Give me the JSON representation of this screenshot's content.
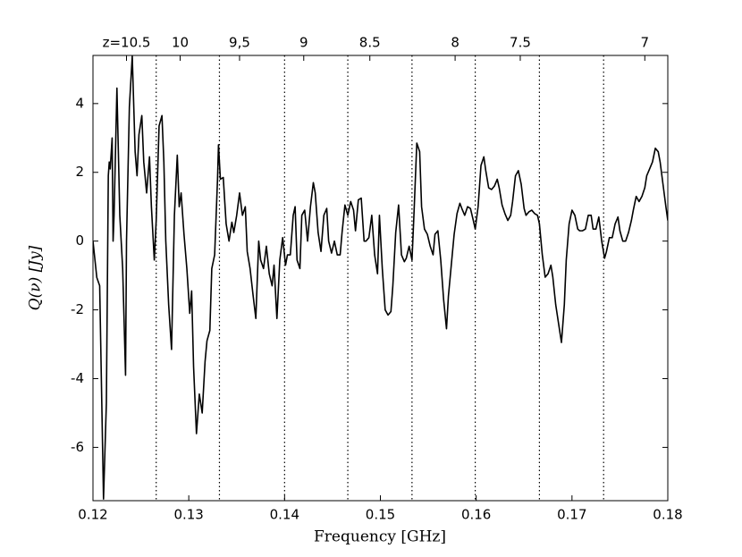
{
  "chart_data": {
    "type": "line",
    "xlabel": "Frequency [GHz]",
    "ylabel": "Q(ν) [Jy]",
    "xlim": [
      0.12,
      0.18
    ],
    "ylim": [
      -7.55,
      5.4
    ],
    "xticks": [
      0.12,
      0.13,
      0.14,
      0.15,
      0.16,
      0.17,
      0.18
    ],
    "yticks": [
      -6,
      -4,
      -2,
      0,
      2,
      4
    ],
    "x2ticks": [
      {
        "value": 0.1235,
        "label": "z=10.5"
      },
      {
        "value": 0.1291,
        "label": "10"
      },
      {
        "value": 0.1353,
        "label": "9,5"
      },
      {
        "value": 0.142,
        "label": "9"
      },
      {
        "value": 0.1489,
        "label": "8.5"
      },
      {
        "value": 0.1578,
        "label": "8"
      },
      {
        "value": 0.1646,
        "label": "7.5"
      },
      {
        "value": 0.1776,
        "label": "7"
      }
    ],
    "vlines": [
      0.1266,
      0.1332,
      0.14,
      0.1466,
      0.1533,
      0.1599,
      0.1666,
      0.1733
    ],
    "color": "#000000",
    "x": [
      0.12,
      0.1204,
      0.1207,
      0.1211,
      0.1214,
      0.1216,
      0.1217,
      0.1218,
      0.122,
      0.1221,
      0.1222,
      0.1225,
      0.1228,
      0.1231,
      0.1234,
      0.1235,
      0.1238,
      0.1241,
      0.1244,
      0.1246,
      0.1248,
      0.1251,
      0.1253,
      0.1256,
      0.1259,
      0.1261,
      0.1264,
      0.1266,
      0.1269,
      0.1272,
      0.1274,
      0.1276,
      0.1279,
      0.1282,
      0.1285,
      0.1288,
      0.129,
      0.1292,
      0.1295,
      0.1298,
      0.1301,
      0.1303,
      0.1305,
      0.1308,
      0.1311,
      0.1314,
      0.1317,
      0.1319,
      0.1322,
      0.1324,
      0.1327,
      0.133,
      0.1331,
      0.1333,
      0.1336,
      0.1339,
      0.1342,
      0.1345,
      0.1347,
      0.135,
      0.1353,
      0.1356,
      0.1359,
      0.1361,
      0.1364,
      0.1367,
      0.137,
      0.1373,
      0.1375,
      0.1378,
      0.1381,
      0.1384,
      0.1387,
      0.1389,
      0.1392,
      0.1395,
      0.1398,
      0.1401,
      0.1403,
      0.1406,
      0.1409,
      0.1411,
      0.1413,
      0.1416,
      0.1418,
      0.1421,
      0.1424,
      0.1427,
      0.143,
      0.1432,
      0.1435,
      0.1438,
      0.1441,
      0.1444,
      0.1446,
      0.1449,
      0.1452,
      0.1455,
      0.1458,
      0.146,
      0.1463,
      0.1466,
      0.1469,
      0.1472,
      0.1474,
      0.1477,
      0.148,
      0.1483,
      0.1485,
      0.1488,
      0.1491,
      0.1494,
      0.1497,
      0.1499,
      0.1502,
      0.1505,
      0.1508,
      0.1511,
      0.1513,
      0.1516,
      0.1519,
      0.1522,
      0.1525,
      0.1527,
      0.153,
      0.1533,
      0.1535,
      0.1538,
      0.1541,
      0.1543,
      0.1546,
      0.1549,
      0.1552,
      0.1555,
      0.1557,
      0.156,
      0.1563,
      0.1566,
      0.1569,
      0.1571,
      0.1574,
      0.1577,
      0.158,
      0.1583,
      0.1585,
      0.1588,
      0.1591,
      0.1594,
      0.1597,
      0.1599,
      0.1602,
      0.1605,
      0.1608,
      0.161,
      0.1613,
      0.1616,
      0.1619,
      0.1622,
      0.1624,
      0.1627,
      0.163,
      0.1633,
      0.1636,
      0.1638,
      0.1641,
      0.1644,
      0.1647,
      0.165,
      0.1652,
      0.1655,
      0.1658,
      0.1661,
      0.1664,
      0.1666,
      0.1669,
      0.1672,
      0.1675,
      0.1678,
      0.168,
      0.1683,
      0.1686,
      0.1689,
      0.1692,
      0.1694,
      0.1697,
      0.17,
      0.1703,
      0.1706,
      0.1708,
      0.1711,
      0.1714,
      0.1717,
      0.172,
      0.1722,
      0.1725,
      0.1728,
      0.1731,
      0.1734,
      0.1736,
      0.1739,
      0.1742,
      0.1745,
      0.1748,
      0.175,
      0.1753,
      0.1756,
      0.1759,
      0.1762,
      0.1764,
      0.1767,
      0.177,
      0.1773,
      0.1776,
      0.1778,
      0.1781,
      0.1784,
      0.1787,
      0.179,
      0.1792,
      0.1795,
      0.1798,
      0.18
    ],
    "values": [
      0,
      -1.06,
      -1.3,
      -7.5,
      -4.7,
      1.9,
      2.3,
      2.1,
      3.0,
      0,
      0.75,
      4.45,
      0.75,
      -0.8,
      -3.9,
      0,
      3.9,
      5.38,
      2.6,
      1.9,
      3.1,
      3.65,
      2.3,
      1.4,
      2.45,
      1.0,
      -0.55,
      0.6,
      3.35,
      3.65,
      2.3,
      0,
      -1.85,
      -3.15,
      0.75,
      2.5,
      1.0,
      1.4,
      0.2,
      -0.8,
      -2.1,
      -1.45,
      -3.65,
      -5.6,
      -4.45,
      -5.0,
      -3.5,
      -2.9,
      -2.6,
      -0.8,
      -0.4,
      1.8,
      2.8,
      1.8,
      1.85,
      0.5,
      0,
      0.55,
      0.25,
      0.75,
      1.4,
      0.75,
      1.0,
      -0.3,
      -0.8,
      -1.55,
      -2.25,
      0,
      -0.55,
      -0.8,
      -0.15,
      -0.95,
      -1.3,
      -0.7,
      -2.25,
      -0.55,
      0.1,
      -0.7,
      -0.4,
      -0.4,
      0.75,
      1.0,
      -0.55,
      -0.8,
      0.75,
      0.9,
      0,
      1.0,
      1.7,
      1.4,
      0.25,
      -0.3,
      0.75,
      0.95,
      0,
      -0.35,
      0,
      -0.4,
      -0.4,
      0.25,
      1.05,
      0.75,
      1.15,
      0.9,
      0.3,
      1.2,
      1.25,
      0,
      0,
      0.1,
      0.75,
      -0.4,
      -0.95,
      0.75,
      -0.8,
      -2.0,
      -2.15,
      -2.05,
      -1.3,
      0.25,
      1.05,
      -0.4,
      -0.6,
      -0.5,
      -0.15,
      -0.55,
      0.75,
      2.85,
      2.6,
      1.0,
      0.35,
      0.2,
      -0.15,
      -0.4,
      0.2,
      0.3,
      -0.55,
      -1.7,
      -2.55,
      -1.6,
      -0.7,
      0.2,
      0.8,
      1.1,
      0.95,
      0.75,
      1.0,
      0.95,
      0.6,
      0.35,
      1.0,
      2.2,
      2.45,
      2.05,
      1.55,
      1.5,
      1.6,
      1.8,
      1.55,
      1.05,
      0.8,
      0.6,
      0.75,
      1.15,
      1.9,
      2.05,
      1.65,
      0.95,
      0.75,
      0.85,
      0.9,
      0.8,
      0.75,
      0.5,
      -0.4,
      -1.05,
      -0.95,
      -0.7,
      -1.05,
      -1.85,
      -2.4,
      -2.95,
      -1.85,
      -0.55,
      0.5,
      0.9,
      0.75,
      0.35,
      0.3,
      0.3,
      0.35,
      0.75,
      0.75,
      0.35,
      0.35,
      0.7,
      0,
      -0.5,
      -0.3,
      0.1,
      0.1,
      0.5,
      0.7,
      0.3,
      0,
      0,
      0.25,
      0.6,
      0.9,
      1.3,
      1.15,
      1.3,
      1.55,
      1.9,
      2.1,
      2.3,
      2.7,
      2.6,
      2.3,
      1.65,
      1.0,
      0.6
    ]
  }
}
